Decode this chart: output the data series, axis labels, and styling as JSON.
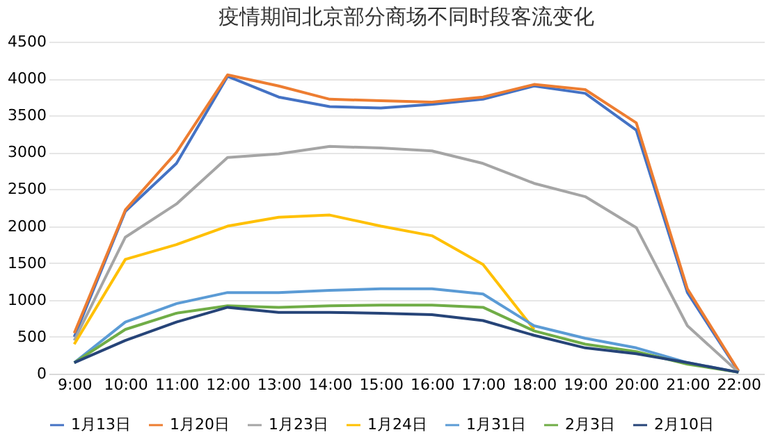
{
  "chart_data": {
    "type": "line",
    "title": "疫情期间北京部分商场不同时段客流变化",
    "categories": [
      "9:00",
      "10:00",
      "11:00",
      "12:00",
      "13:00",
      "14:00",
      "15:00",
      "16:00",
      "17:00",
      "18:00",
      "19:00",
      "20:00",
      "21:00",
      "22:00"
    ],
    "series": [
      {
        "name": "1月13日",
        "color": "#4472c4",
        "values": [
          500,
          2200,
          2850,
          4030,
          3750,
          3620,
          3600,
          3650,
          3720,
          3900,
          3800,
          3300,
          1100,
          30
        ]
      },
      {
        "name": "1月20日",
        "color": "#ed7d31",
        "values": [
          550,
          2220,
          3000,
          4050,
          3900,
          3720,
          3700,
          3680,
          3750,
          3920,
          3850,
          3400,
          1150,
          40
        ]
      },
      {
        "name": "1月23日",
        "color": "#a5a5a5",
        "values": [
          450,
          1850,
          2300,
          2930,
          2980,
          3080,
          3060,
          3020,
          2850,
          2580,
          2400,
          1980,
          650,
          20
        ]
      },
      {
        "name": "1月24日",
        "color": "#ffc000",
        "values": [
          400,
          1550,
          1750,
          2000,
          2120,
          2150,
          2000,
          1870,
          1480,
          600,
          null,
          null,
          null,
          null
        ]
      },
      {
        "name": "1月31日",
        "color": "#5b9bd5",
        "values": [
          150,
          700,
          950,
          1100,
          1100,
          1130,
          1150,
          1150,
          1080,
          650,
          480,
          350,
          150,
          20
        ]
      },
      {
        "name": "2月3日",
        "color": "#70ad47",
        "values": [
          150,
          600,
          820,
          920,
          900,
          920,
          930,
          930,
          900,
          580,
          400,
          300,
          130,
          20
        ]
      },
      {
        "name": "2月10日",
        "color": "#264478",
        "values": [
          150,
          450,
          700,
          900,
          830,
          830,
          820,
          800,
          720,
          520,
          350,
          270,
          150,
          20
        ]
      }
    ],
    "ylim": [
      0,
      4500
    ],
    "yticks": [
      0,
      500,
      1000,
      1500,
      2000,
      2500,
      3000,
      3500,
      4000,
      4500
    ],
    "grid": "y",
    "legend": "bottom",
    "marker": "none",
    "line_style": "solid"
  }
}
